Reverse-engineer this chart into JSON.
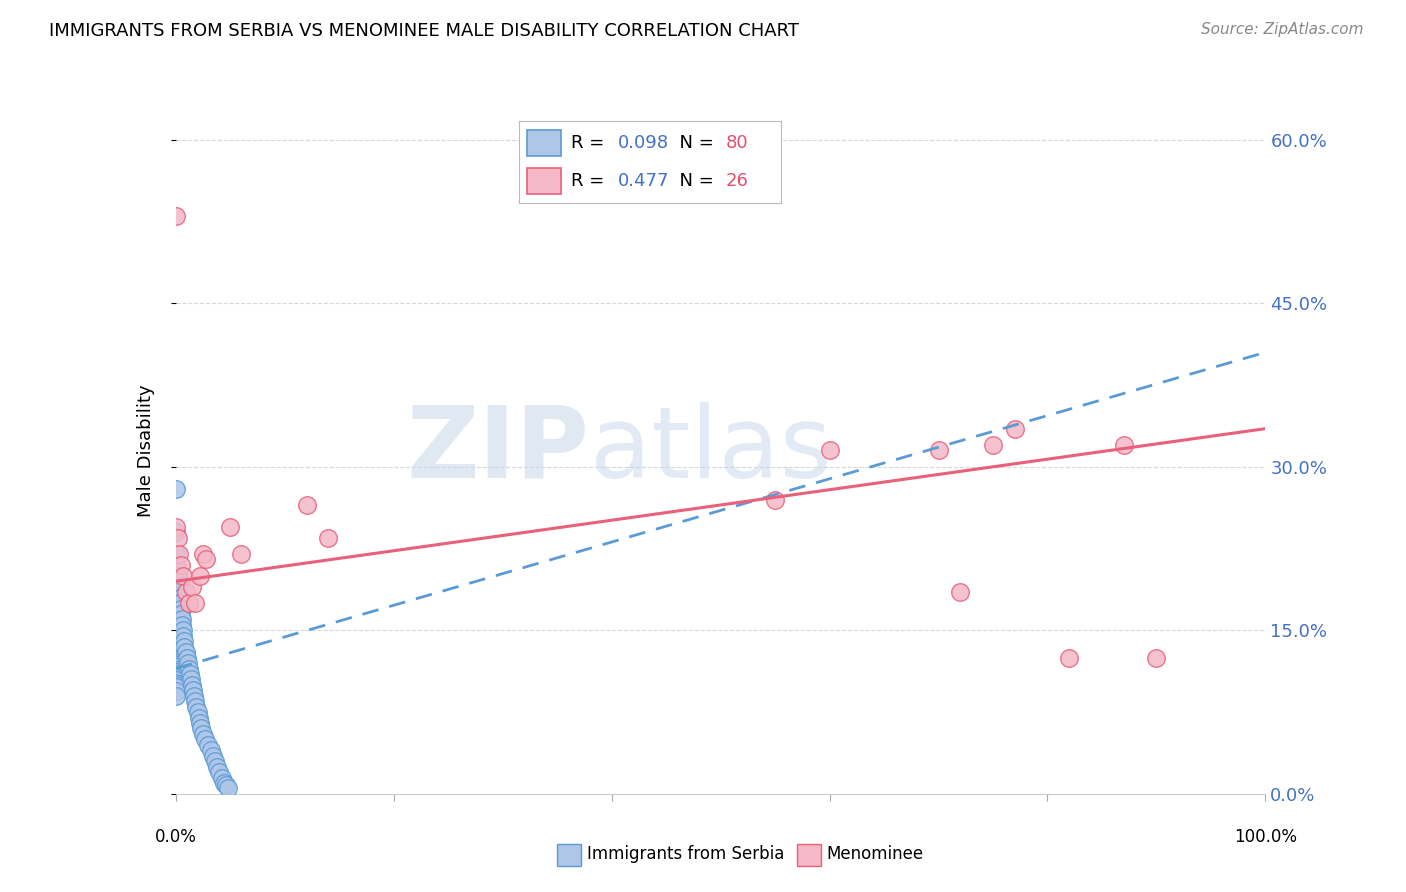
{
  "title": "IMMIGRANTS FROM SERBIA VS MENOMINEE MALE DISABILITY CORRELATION CHART",
  "source": "Source: ZipAtlas.com",
  "ylabel": "Male Disability",
  "ytick_labels": [
    "0.0%",
    "15.0%",
    "30.0%",
    "45.0%",
    "60.0%"
  ],
  "ytick_values": [
    0.0,
    0.15,
    0.3,
    0.45,
    0.6
  ],
  "xlim": [
    0.0,
    1.0
  ],
  "ylim": [
    0.0,
    0.63
  ],
  "serbia_R": 0.098,
  "serbia_N": 80,
  "menominee_R": 0.477,
  "menominee_N": 26,
  "serbia_color": "#aec6e8",
  "serbia_edge_color": "#5b9bd5",
  "menominee_color": "#f4b8c8",
  "menominee_edge_color": "#e8607a",
  "serbia_x": [
    0.0,
    0.0,
    0.0,
    0.0,
    0.0,
    0.0,
    0.0,
    0.0,
    0.0,
    0.0,
    0.0,
    0.0,
    0.0,
    0.0,
    0.0,
    0.0,
    0.0,
    0.0,
    0.0,
    0.0,
    0.0,
    0.0,
    0.0,
    0.0,
    0.0,
    0.0,
    0.0,
    0.0,
    0.0,
    0.0,
    0.0,
    0.0,
    0.0,
    0.0,
    0.0,
    0.0,
    0.0,
    0.0,
    0.0,
    0.0,
    0.002,
    0.003,
    0.003,
    0.004,
    0.004,
    0.005,
    0.005,
    0.006,
    0.006,
    0.007,
    0.007,
    0.008,
    0.008,
    0.009,
    0.01,
    0.011,
    0.012,
    0.013,
    0.014,
    0.015,
    0.016,
    0.017,
    0.018,
    0.019,
    0.02,
    0.021,
    0.022,
    0.023,
    0.025,
    0.027,
    0.03,
    0.032,
    0.034,
    0.036,
    0.038,
    0.04,
    0.042,
    0.044,
    0.046,
    0.048
  ],
  "serbia_y": [
    0.28,
    0.24,
    0.22,
    0.21,
    0.2,
    0.195,
    0.19,
    0.185,
    0.18,
    0.175,
    0.17,
    0.165,
    0.16,
    0.155,
    0.15,
    0.148,
    0.145,
    0.14,
    0.138,
    0.135,
    0.132,
    0.13,
    0.128,
    0.126,
    0.124,
    0.122,
    0.12,
    0.118,
    0.116,
    0.114,
    0.112,
    0.11,
    0.108,
    0.106,
    0.104,
    0.102,
    0.1,
    0.098,
    0.094,
    0.09,
    0.2,
    0.185,
    0.19,
    0.18,
    0.175,
    0.17,
    0.165,
    0.16,
    0.155,
    0.15,
    0.145,
    0.14,
    0.135,
    0.13,
    0.125,
    0.12,
    0.115,
    0.11,
    0.105,
    0.1,
    0.095,
    0.09,
    0.085,
    0.08,
    0.075,
    0.07,
    0.065,
    0.06,
    0.055,
    0.05,
    0.045,
    0.04,
    0.035,
    0.03,
    0.025,
    0.02,
    0.015,
    0.01,
    0.008,
    0.005
  ],
  "menominee_x": [
    0.0,
    0.0,
    0.002,
    0.003,
    0.005,
    0.007,
    0.009,
    0.012,
    0.015,
    0.018,
    0.022,
    0.025,
    0.028,
    0.05,
    0.06,
    0.12,
    0.14,
    0.55,
    0.6,
    0.7,
    0.72,
    0.75,
    0.77,
    0.82,
    0.87,
    0.9
  ],
  "menominee_y": [
    0.53,
    0.245,
    0.235,
    0.22,
    0.21,
    0.2,
    0.185,
    0.175,
    0.19,
    0.175,
    0.2,
    0.22,
    0.215,
    0.245,
    0.22,
    0.265,
    0.235,
    0.27,
    0.315,
    0.315,
    0.185,
    0.32,
    0.335,
    0.125,
    0.32,
    0.125
  ],
  "watermark_zip": "ZIP",
  "watermark_atlas": "atlas",
  "background_color": "#ffffff",
  "grid_color": "#d8d8d8",
  "legend_R_color": "#4472c4",
  "legend_N_color": "#e05070"
}
